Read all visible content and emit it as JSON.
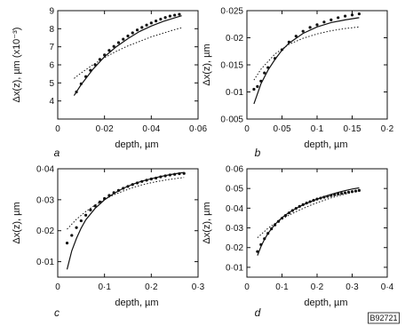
{
  "figure_code": "B92721",
  "chart_data": [
    {
      "type": "scatter",
      "panel_label": "a",
      "xlabel": "depth, µm",
      "ylabel": "Δx(z), µm (x10⁻³)",
      "xlim": [
        0,
        0.06
      ],
      "ylim": [
        3,
        9
      ],
      "xticks": [
        0,
        0.02,
        0.04,
        0.06
      ],
      "xtick_labels": [
        "0",
        "0.02",
        "0.04",
        "0.06"
      ],
      "yticks": [
        4,
        5,
        6,
        7,
        8,
        9
      ],
      "ytick_labels": [
        "4",
        "5",
        "6",
        "7",
        "8",
        "9"
      ],
      "series": [
        {
          "style": "dots",
          "x": [
            0.008,
            0.01,
            0.012,
            0.014,
            0.016,
            0.018,
            0.02,
            0.022,
            0.024,
            0.026,
            0.028,
            0.03,
            0.032,
            0.034,
            0.036,
            0.038,
            0.04,
            0.042,
            0.044,
            0.046,
            0.048,
            0.05,
            0.052
          ],
          "y": [
            4.5,
            4.95,
            5.35,
            5.7,
            6.0,
            6.3,
            6.55,
            6.8,
            7.02,
            7.23,
            7.42,
            7.6,
            7.77,
            7.93,
            8.07,
            8.2,
            8.32,
            8.43,
            8.53,
            8.62,
            8.7,
            8.75,
            8.8
          ]
        },
        {
          "style": "solid",
          "x": [
            0.007,
            0.01,
            0.015,
            0.02,
            0.025,
            0.03,
            0.035,
            0.04,
            0.045,
            0.05,
            0.053
          ],
          "y": [
            4.3,
            4.9,
            5.75,
            6.45,
            7.0,
            7.45,
            7.85,
            8.15,
            8.4,
            8.6,
            8.72
          ]
        },
        {
          "style": "dotted",
          "x": [
            0.007,
            0.01,
            0.015,
            0.02,
            0.025,
            0.03,
            0.035,
            0.04,
            0.045,
            0.05,
            0.053
          ],
          "y": [
            5.25,
            5.55,
            6.0,
            6.4,
            6.75,
            7.05,
            7.3,
            7.55,
            7.75,
            7.95,
            8.05
          ]
        }
      ]
    },
    {
      "type": "scatter",
      "panel_label": "b",
      "xlabel": "depth, µm",
      "ylabel": "Δx(z), µm",
      "xlim": [
        0,
        0.2
      ],
      "ylim": [
        0.005,
        0.025
      ],
      "xticks": [
        0,
        0.05,
        0.1,
        0.15,
        0.2
      ],
      "xtick_labels": [
        "0",
        "0.05",
        "0.1",
        "0.15",
        "0.2"
      ],
      "yticks": [
        0.005,
        0.01,
        0.015,
        0.02,
        0.025
      ],
      "ytick_labels": [
        "0.005",
        "0.01",
        "0.015",
        "0.02",
        "0.025"
      ],
      "series": [
        {
          "style": "dots",
          "x": [
            0.01,
            0.015,
            0.02,
            0.025,
            0.03,
            0.04,
            0.05,
            0.06,
            0.07,
            0.08,
            0.09,
            0.1,
            0.11,
            0.12,
            0.13,
            0.14,
            0.15,
            0.16
          ],
          "y": [
            0.0105,
            0.011,
            0.012,
            0.0135,
            0.0145,
            0.0162,
            0.0178,
            0.0192,
            0.0203,
            0.0212,
            0.0219,
            0.0224,
            0.0229,
            0.0233,
            0.0237,
            0.024,
            0.0242,
            0.0244
          ]
        },
        {
          "style": "solid",
          "x": [
            0.01,
            0.02,
            0.03,
            0.04,
            0.05,
            0.06,
            0.08,
            0.1,
            0.12,
            0.14,
            0.16
          ],
          "y": [
            0.0078,
            0.0115,
            0.014,
            0.016,
            0.0177,
            0.019,
            0.0208,
            0.022,
            0.0228,
            0.0233,
            0.0237
          ]
        },
        {
          "style": "dotted",
          "x": [
            0.01,
            0.02,
            0.04,
            0.06,
            0.08,
            0.1,
            0.12,
            0.14,
            0.16
          ],
          "y": [
            0.0122,
            0.0142,
            0.017,
            0.0188,
            0.0199,
            0.0207,
            0.0213,
            0.0217,
            0.022
          ]
        }
      ]
    },
    {
      "type": "scatter",
      "panel_label": "c",
      "xlabel": "depth, µm",
      "ylabel": "Δx(z), µm",
      "xlim": [
        0,
        0.3
      ],
      "ylim": [
        0.005,
        0.04
      ],
      "xticks": [
        0,
        0.1,
        0.2,
        0.3
      ],
      "xtick_labels": [
        "0",
        "0.1",
        "0.2",
        "0.3"
      ],
      "yticks": [
        0.01,
        0.02,
        0.03,
        0.04
      ],
      "ytick_labels": [
        "0.01",
        "0.02",
        "0.03",
        "0.04"
      ],
      "series": [
        {
          "style": "dots",
          "x": [
            0.02,
            0.03,
            0.04,
            0.05,
            0.06,
            0.07,
            0.08,
            0.09,
            0.1,
            0.11,
            0.12,
            0.13,
            0.14,
            0.15,
            0.16,
            0.17,
            0.18,
            0.19,
            0.2,
            0.21,
            0.22,
            0.23,
            0.24,
            0.25,
            0.26,
            0.27
          ],
          "y": [
            0.016,
            0.0185,
            0.021,
            0.0232,
            0.025,
            0.0267,
            0.028,
            0.0293,
            0.0304,
            0.0314,
            0.0323,
            0.033,
            0.0337,
            0.0343,
            0.0349,
            0.0354,
            0.0359,
            0.0363,
            0.0367,
            0.037,
            0.0374,
            0.0377,
            0.038,
            0.0382,
            0.0384,
            0.0385
          ]
        },
        {
          "style": "solid",
          "x": [
            0.02,
            0.03,
            0.04,
            0.05,
            0.06,
            0.08,
            0.1,
            0.12,
            0.14,
            0.16,
            0.18,
            0.2,
            0.22,
            0.24,
            0.26,
            0.27
          ],
          "y": [
            0.0075,
            0.0135,
            0.0175,
            0.0208,
            0.0235,
            0.0272,
            0.03,
            0.032,
            0.0337,
            0.035,
            0.036,
            0.0368,
            0.0375,
            0.0381,
            0.0386,
            0.0388
          ]
        },
        {
          "style": "dotted",
          "x": [
            0.02,
            0.04,
            0.06,
            0.08,
            0.1,
            0.12,
            0.14,
            0.16,
            0.18,
            0.2,
            0.22,
            0.24,
            0.26,
            0.27
          ],
          "y": [
            0.0205,
            0.0237,
            0.0262,
            0.0283,
            0.0301,
            0.0316,
            0.0328,
            0.0339,
            0.0348,
            0.0355,
            0.0361,
            0.0366,
            0.037,
            0.0372
          ]
        }
      ]
    },
    {
      "type": "scatter",
      "panel_label": "d",
      "xlabel": "depth, µm",
      "ylabel": "Δx(z), µm",
      "xlim": [
        0,
        0.4
      ],
      "ylim": [
        0.005,
        0.06
      ],
      "xticks": [
        0,
        0.1,
        0.2,
        0.3,
        0.4
      ],
      "xtick_labels": [
        "0",
        "0.1",
        "0.2",
        "0.3",
        "0.4"
      ],
      "yticks": [
        0.01,
        0.02,
        0.03,
        0.04,
        0.05,
        0.06
      ],
      "ytick_labels": [
        "0.01",
        "0.02",
        "0.03",
        "0.04",
        "0.05",
        "0.06"
      ],
      "series": [
        {
          "style": "dots",
          "x": [
            0.03,
            0.04,
            0.05,
            0.06,
            0.07,
            0.08,
            0.09,
            0.1,
            0.11,
            0.12,
            0.13,
            0.14,
            0.15,
            0.16,
            0.17,
            0.18,
            0.19,
            0.2,
            0.21,
            0.22,
            0.23,
            0.24,
            0.25,
            0.26,
            0.27,
            0.28,
            0.29,
            0.3,
            0.31,
            0.32
          ],
          "y": [
            0.018,
            0.0215,
            0.0245,
            0.0272,
            0.0295,
            0.0315,
            0.0333,
            0.0349,
            0.0363,
            0.0376,
            0.0388,
            0.0399,
            0.0409,
            0.0418,
            0.0426,
            0.0433,
            0.044,
            0.0446,
            0.0451,
            0.0456,
            0.046,
            0.0464,
            0.0468,
            0.0472,
            0.0475,
            0.0478,
            0.0481,
            0.0484,
            0.0487,
            0.049
          ]
        },
        {
          "style": "solid",
          "x": [
            0.03,
            0.04,
            0.05,
            0.06,
            0.08,
            0.1,
            0.12,
            0.14,
            0.16,
            0.18,
            0.2,
            0.22,
            0.24,
            0.26,
            0.28,
            0.3,
            0.32
          ],
          "y": [
            0.016,
            0.0205,
            0.0242,
            0.0272,
            0.0318,
            0.0352,
            0.0378,
            0.0399,
            0.0417,
            0.0432,
            0.0446,
            0.0459,
            0.047,
            0.048,
            0.0489,
            0.0497,
            0.0503
          ]
        },
        {
          "style": "dotted",
          "x": [
            0.03,
            0.06,
            0.09,
            0.12,
            0.15,
            0.18,
            0.21,
            0.24,
            0.27,
            0.3,
            0.32
          ],
          "y": [
            0.025,
            0.0298,
            0.0335,
            0.0365,
            0.0391,
            0.0414,
            0.0434,
            0.0452,
            0.0467,
            0.048,
            0.0488
          ]
        }
      ]
    }
  ]
}
